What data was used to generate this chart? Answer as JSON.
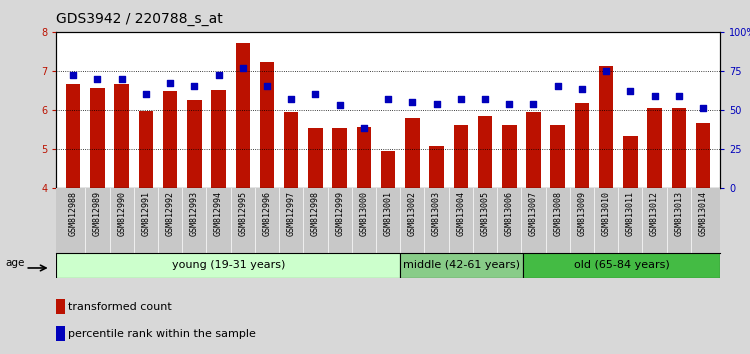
{
  "title": "GDS3942 / 220788_s_at",
  "samples": [
    "GSM812988",
    "GSM812989",
    "GSM812990",
    "GSM812991",
    "GSM812992",
    "GSM812993",
    "GSM812994",
    "GSM812995",
    "GSM812996",
    "GSM812997",
    "GSM812998",
    "GSM812999",
    "GSM813000",
    "GSM813001",
    "GSM813002",
    "GSM813003",
    "GSM813004",
    "GSM813005",
    "GSM813006",
    "GSM813007",
    "GSM813008",
    "GSM813009",
    "GSM813010",
    "GSM813011",
    "GSM813012",
    "GSM813013",
    "GSM813014"
  ],
  "bar_values": [
    6.65,
    6.57,
    6.65,
    5.97,
    6.48,
    6.25,
    6.5,
    7.72,
    7.22,
    5.95,
    5.54,
    5.53,
    5.55,
    4.93,
    5.78,
    5.07,
    5.6,
    5.85,
    5.6,
    5.95,
    5.6,
    6.18,
    7.12,
    5.33,
    6.05,
    6.05,
    5.65
  ],
  "dot_percentiles": [
    72,
    70,
    70,
    60,
    67,
    65,
    72,
    77,
    65,
    57,
    60,
    53,
    38,
    57,
    55,
    54,
    57,
    57,
    54,
    54,
    65,
    63,
    75,
    62,
    59,
    59,
    51
  ],
  "ylim": [
    4,
    8
  ],
  "yticks": [
    4,
    5,
    6,
    7,
    8
  ],
  "y2lim": [
    0,
    100
  ],
  "y2ticks": [
    0,
    25,
    50,
    75,
    100
  ],
  "y2labels": [
    "0",
    "25",
    "50",
    "75",
    "100%"
  ],
  "bar_color": "#bb1100",
  "dot_color": "#0000bb",
  "group_young_count": 14,
  "group_middle_count": 5,
  "group_old_count": 8,
  "group_young_label": "young (19-31 years)",
  "group_middle_label": "middle (42-61 years)",
  "group_old_label": "old (65-84 years)",
  "group_young_color": "#ccffcc",
  "group_middle_color": "#88cc88",
  "group_old_color": "#44bb44",
  "age_label": "age",
  "legend_bar_label": "transformed count",
  "legend_dot_label": "percentile rank within the sample",
  "bg_color": "#d8d8d8",
  "plot_bg": "#ffffff",
  "xtick_bg": "#c8c8c8",
  "title_fontsize": 10,
  "tick_fontsize": 6,
  "group_fontsize": 8
}
